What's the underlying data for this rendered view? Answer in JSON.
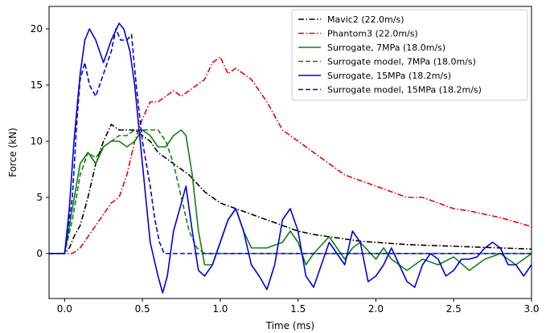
{
  "chart_data": {
    "type": "line",
    "xlabel": "Time (ms)",
    "ylabel": "Force (kN)",
    "xlim": [
      -0.1,
      3.0
    ],
    "ylim": [
      -4,
      22
    ],
    "x_ticks": [
      0.0,
      0.5,
      1.0,
      1.5,
      2.0,
      2.5,
      3.0
    ],
    "x_tick_labels": [
      "0.0",
      "0.5",
      "1.0",
      "1.5",
      "2.0",
      "2.5",
      "3.0"
    ],
    "y_ticks": [
      0,
      5,
      10,
      15,
      20
    ],
    "y_tick_labels": [
      "0",
      "5",
      "10",
      "15",
      "20"
    ],
    "grid": false,
    "legend_position": "top-right",
    "series": [
      {
        "name": "Mavic2 (22.0m/s)",
        "color": "#000000",
        "style": "dashdot",
        "x": [
          -0.1,
          0.0,
          0.03,
          0.06,
          0.1,
          0.15,
          0.2,
          0.25,
          0.3,
          0.35,
          0.4,
          0.45,
          0.5,
          0.55,
          0.6,
          0.65,
          0.7,
          0.8,
          0.9,
          1.0,
          1.1,
          1.2,
          1.3,
          1.4,
          1.5,
          1.6,
          1.7,
          1.8,
          1.9,
          2.0,
          2.2,
          2.4,
          2.6,
          2.8,
          3.0
        ],
        "y": [
          0,
          0,
          0.5,
          1.5,
          2.5,
          5,
          8,
          10,
          11.5,
          11,
          11,
          11,
          10.5,
          10,
          9,
          8.5,
          8,
          7,
          5.5,
          4.5,
          4,
          3.5,
          3,
          2.5,
          2,
          1.7,
          1.5,
          1.3,
          1.1,
          1.0,
          0.8,
          0.7,
          0.6,
          0.5,
          0.4
        ]
      },
      {
        "name": "Phantom3 (22.0m/s)",
        "color": "#e8000b",
        "style": "dashdot",
        "x": [
          -0.1,
          0.05,
          0.1,
          0.15,
          0.2,
          0.25,
          0.3,
          0.35,
          0.4,
          0.45,
          0.5,
          0.55,
          0.6,
          0.65,
          0.7,
          0.75,
          0.8,
          0.9,
          0.95,
          1.0,
          1.05,
          1.1,
          1.15,
          1.2,
          1.3,
          1.4,
          1.5,
          1.6,
          1.7,
          1.8,
          1.9,
          2.0,
          2.1,
          2.2,
          2.3,
          2.4,
          2.5,
          2.6,
          2.7,
          2.8,
          2.9,
          3.0
        ],
        "y": [
          0,
          0,
          0.5,
          1.5,
          2.5,
          3.5,
          4.5,
          5,
          7,
          10,
          12,
          13.5,
          13.5,
          14,
          14.5,
          14,
          14.5,
          15.5,
          17,
          17.5,
          16,
          16.5,
          16,
          15.5,
          13.5,
          11,
          10,
          9,
          8,
          7,
          6.5,
          6,
          5.5,
          5,
          5,
          4.5,
          4,
          3.8,
          3.5,
          3.2,
          2.8,
          2.4
        ]
      },
      {
        "name": "Surrogate, 7MPa (18.0m/s)",
        "color": "#108010",
        "style": "solid",
        "x": [
          -0.1,
          0.0,
          0.05,
          0.1,
          0.15,
          0.2,
          0.25,
          0.3,
          0.35,
          0.4,
          0.45,
          0.5,
          0.55,
          0.6,
          0.65,
          0.7,
          0.75,
          0.78,
          0.82,
          0.86,
          0.9,
          0.95,
          1.0,
          1.05,
          1.1,
          1.15,
          1.2,
          1.3,
          1.4,
          1.45,
          1.5,
          1.55,
          1.6,
          1.7,
          1.8,
          1.85,
          1.9,
          2.0,
          2.05,
          2.1,
          2.2,
          2.3,
          2.4,
          2.5,
          2.6,
          2.7,
          2.8,
          2.9,
          3.0
        ],
        "y": [
          0,
          0,
          4,
          8,
          9,
          8,
          9.5,
          10,
          10,
          9.5,
          10,
          11,
          10.5,
          9.5,
          9.5,
          10.5,
          11,
          10.5,
          7,
          2,
          -1,
          -1,
          1,
          3,
          4,
          2,
          0.5,
          0.5,
          1,
          2,
          1,
          -1,
          0,
          1.5,
          -0.5,
          0.5,
          1,
          -0.5,
          0.5,
          -0.5,
          -1.5,
          -0.5,
          -1,
          -0.3,
          -1.5,
          -0.5,
          0,
          -1,
          0
        ]
      },
      {
        "name": "Surrogate model, 7MPa (18.0m/s)",
        "color": "#108010",
        "style": "dashed",
        "x": [
          -0.1,
          0.0,
          0.05,
          0.1,
          0.15,
          0.2,
          0.25,
          0.3,
          0.35,
          0.4,
          0.45,
          0.5,
          0.55,
          0.6,
          0.65,
          0.7,
          0.75,
          0.8,
          0.85,
          0.9,
          3.0
        ],
        "y": [
          0,
          0,
          3,
          7,
          9,
          8.5,
          9.5,
          10,
          10.5,
          10.5,
          11,
          11,
          11,
          11,
          10,
          8,
          5,
          2,
          0.5,
          0,
          0
        ]
      },
      {
        "name": "Surrogate, 15MPa (18.2m/s)",
        "color": "#0000e0",
        "style": "solid",
        "x": [
          -0.1,
          0.0,
          0.03,
          0.06,
          0.1,
          0.13,
          0.16,
          0.2,
          0.25,
          0.3,
          0.35,
          0.38,
          0.42,
          0.45,
          0.5,
          0.55,
          0.6,
          0.63,
          0.66,
          0.7,
          0.74,
          0.78,
          0.82,
          0.86,
          0.9,
          0.95,
          1.0,
          1.05,
          1.1,
          1.15,
          1.2,
          1.25,
          1.3,
          1.35,
          1.4,
          1.45,
          1.5,
          1.55,
          1.6,
          1.65,
          1.7,
          1.75,
          1.8,
          1.85,
          1.9,
          1.95,
          2.0,
          2.05,
          2.1,
          2.15,
          2.2,
          2.25,
          2.3,
          2.35,
          2.4,
          2.45,
          2.5,
          2.55,
          2.6,
          2.65,
          2.7,
          2.75,
          2.8,
          2.85,
          2.9,
          2.95,
          3.0
        ],
        "y": [
          0,
          0,
          4,
          10,
          16,
          19,
          20,
          19,
          17,
          19,
          20.5,
          20,
          18,
          15,
          8,
          1,
          -2,
          -3.5,
          -2,
          2,
          4,
          6,
          2,
          -1.5,
          -2,
          -1,
          1,
          3,
          4,
          2,
          -1,
          -2,
          -3.2,
          -1,
          3,
          4,
          2,
          -2,
          -3,
          -1,
          1,
          0,
          -1,
          2,
          1,
          -2.5,
          -2,
          -1,
          0.5,
          -1,
          -2.5,
          -3,
          -1,
          0,
          -0.5,
          -2,
          -1.5,
          -0.5,
          -0.5,
          -0.3,
          0.5,
          1,
          0.5,
          -1,
          -1,
          -2,
          -1
        ]
      },
      {
        "name": "Surrogate model, 15MPa (18.2m/s)",
        "color": "#0000e0",
        "style": "dashed",
        "x": [
          -0.1,
          0.0,
          0.05,
          0.08,
          0.1,
          0.13,
          0.16,
          0.2,
          0.25,
          0.3,
          0.33,
          0.36,
          0.4,
          0.43,
          0.46,
          0.5,
          0.55,
          0.58,
          0.61,
          0.64,
          0.66,
          3.0
        ],
        "y": [
          0,
          0,
          5,
          12,
          15.5,
          17,
          15,
          14,
          16,
          18,
          20,
          19,
          19,
          19.5,
          15,
          10,
          6,
          3,
          1,
          0,
          0,
          0
        ]
      }
    ]
  }
}
